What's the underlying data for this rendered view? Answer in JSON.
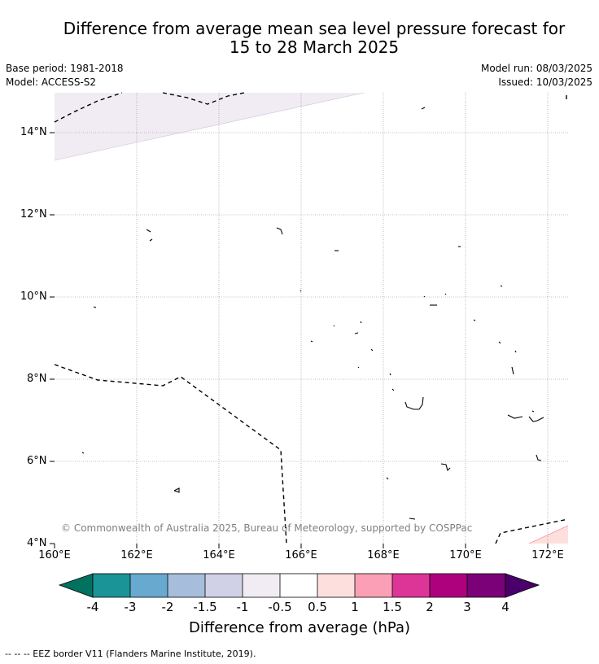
{
  "title": {
    "line1": "Difference from average mean sea level pressure forecast for",
    "line2": "15 to 28 March 2025"
  },
  "meta": {
    "base_period": "Base period: 1981-2018",
    "model": "Model: ACCESS-S2",
    "model_run": "Model run: 08/03/2025",
    "issued": "Issued: 10/03/2025"
  },
  "map": {
    "lat_ticks": [
      "14°N",
      "12°N",
      "10°N",
      "8°N",
      "6°N",
      "4°N"
    ],
    "lon_ticks": [
      "160°E",
      "162°E",
      "164°E",
      "166°E",
      "168°E",
      "170°E",
      "172°E"
    ],
    "copyright": "© Commonwealth of Australia 2025, Bureau of Meteorology, supported by COSPPac",
    "regions": [
      {
        "name": "top-left-region",
        "category": "-1 to -0.5",
        "color": "#f1ecf3"
      },
      {
        "name": "bottom-right-region",
        "category": "0.5 to 1",
        "color": "#fde0dd"
      }
    ]
  },
  "colorbar": {
    "ticks": [
      "-4",
      "-3",
      "-2",
      "-1.5",
      "-1",
      "-0.5",
      "0.5",
      "1",
      "1.5",
      "2",
      "3",
      "4"
    ],
    "colors": [
      "#00725f",
      "#1a9496",
      "#67a9cf",
      "#a6bddb",
      "#d0d1e6",
      "#f1ecf3",
      "#ffffff",
      "#fde0dd",
      "#fa9fb5",
      "#dd3497",
      "#ae017e",
      "#7a0177",
      "#49006a"
    ],
    "label": "Difference from average (hPa)"
  },
  "footer": {
    "eez_legend": "--  --  -- EEZ border V11 (Flanders Marine Institute, 2019)."
  }
}
